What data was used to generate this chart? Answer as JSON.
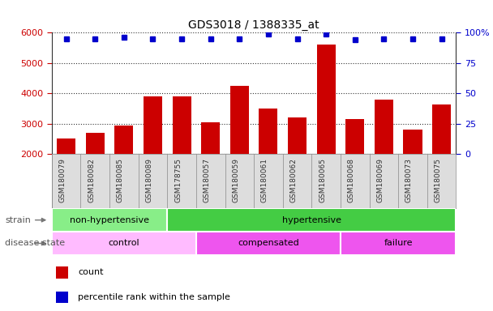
{
  "title": "GDS3018 / 1388335_at",
  "samples": [
    "GSM180079",
    "GSM180082",
    "GSM180085",
    "GSM180089",
    "GSM178755",
    "GSM180057",
    "GSM180059",
    "GSM180061",
    "GSM180062",
    "GSM180065",
    "GSM180068",
    "GSM180069",
    "GSM180073",
    "GSM180075"
  ],
  "counts": [
    2500,
    2700,
    2950,
    3900,
    3900,
    3050,
    4250,
    3500,
    3200,
    5600,
    3150,
    3800,
    2800,
    3620
  ],
  "percentile_ranks": [
    95,
    95,
    96,
    95,
    95,
    95,
    95,
    99,
    95,
    99,
    94,
    95,
    95,
    95
  ],
  "bar_color": "#cc0000",
  "dot_color": "#0000cc",
  "ylim_left": [
    2000,
    6000
  ],
  "ylim_right": [
    0,
    100
  ],
  "yticks_left": [
    2000,
    3000,
    4000,
    5000,
    6000
  ],
  "yticks_right": [
    0,
    25,
    50,
    75,
    100
  ],
  "strain_groups": [
    {
      "label": "non-hypertensive",
      "start": 0,
      "end": 4,
      "color": "#88ee88"
    },
    {
      "label": "hypertensive",
      "start": 4,
      "end": 14,
      "color": "#44cc44"
    }
  ],
  "disease_spans": [
    {
      "label": "control",
      "start": 0,
      "end": 5,
      "color": "#ffbbff"
    },
    {
      "label": "compensated",
      "start": 5,
      "end": 10,
      "color": "#ee55ee"
    },
    {
      "label": "failure",
      "start": 10,
      "end": 14,
      "color": "#ee55ee"
    }
  ],
  "strain_label": "strain",
  "disease_label": "disease state",
  "left_axis_color": "#cc0000",
  "right_axis_color": "#0000cc",
  "tick_bg_color": "#dddddd",
  "grid_color": "#333333"
}
